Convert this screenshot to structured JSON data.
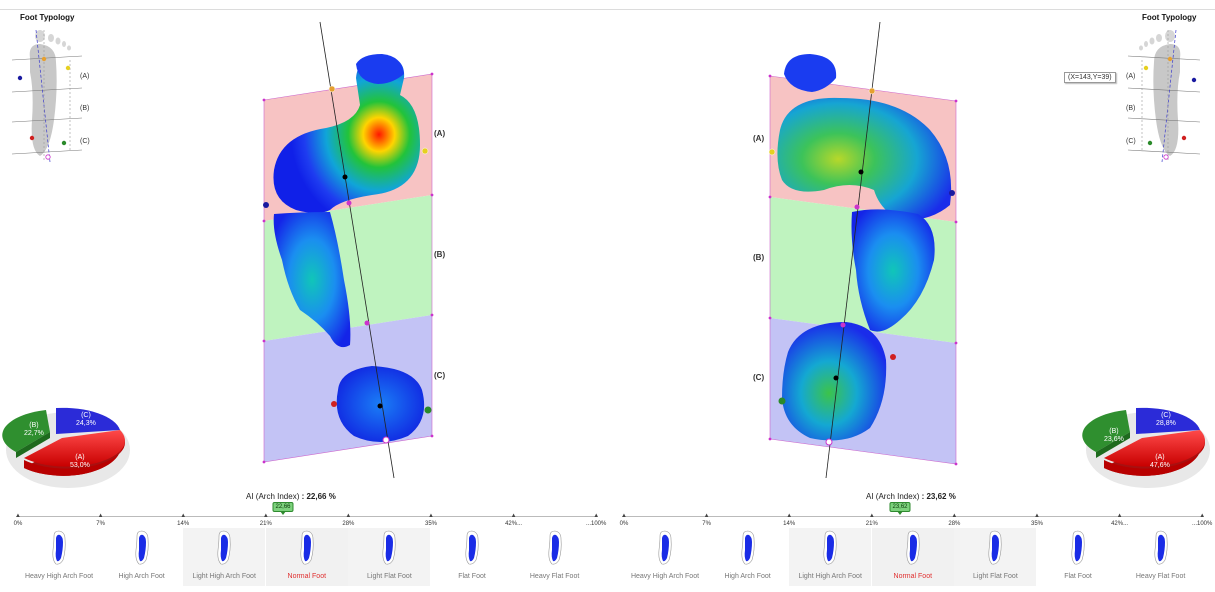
{
  "left": {
    "title": "Foot Typology",
    "zones": [
      "(A)",
      "(B)",
      "(C)"
    ],
    "pie": {
      "a": "(A)\n53,0%",
      "b": "(B)\n22,7%",
      "c": "(C)\n24,3%"
    },
    "pie_a_label": "(A)",
    "pie_a_value": "53,0%",
    "pie_b_label": "(B)",
    "pie_b_value": "22,7%",
    "pie_c_label": "(C)",
    "pie_c_value": "24,3%",
    "ai_label": "AI (Arch Index)",
    "ai_value": ": 22,66 %",
    "marker": "22,66"
  },
  "right": {
    "title": "Foot Typology",
    "zones": [
      "(A)",
      "(B)",
      "(C)"
    ],
    "pie_a_label": "(A)",
    "pie_a_value": "47,6%",
    "pie_b_label": "(B)",
    "pie_b_value": "23,6%",
    "pie_c_label": "(C)",
    "pie_c_value": "28,8%",
    "ai_label": "AI (Arch Index)",
    "ai_value": ": 23,62 %",
    "marker": "23,62"
  },
  "tooltip": "(X=143,Y=39)",
  "scale_ticks": [
    "0%",
    "7%",
    "14%",
    "21%",
    "28%",
    "35%",
    "42%...",
    "...100%"
  ],
  "categories": [
    "Heavy High Arch Foot",
    "High Arch Foot",
    "Light High Arch Foot",
    "Normal Foot",
    "Light Flat Foot",
    "Flat Foot",
    "Heavy Flat Foot"
  ],
  "colors": {
    "zone_a": "#f7c3c3",
    "zone_b": "#bff3bf",
    "zone_c": "#c3c3f5",
    "pie_a": "#e82020",
    "pie_b": "#2f8f2f",
    "pie_c": "#2b2bd8",
    "active_category": "#e03030"
  }
}
